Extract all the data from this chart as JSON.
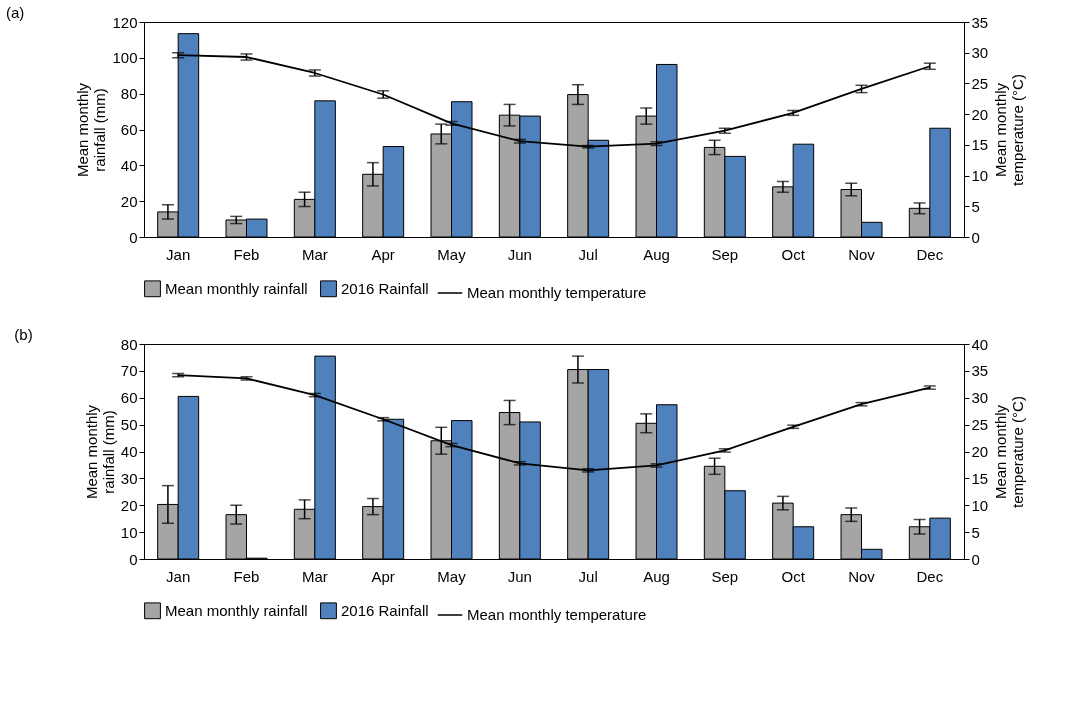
{
  "chart_data": [
    {
      "type": "bar",
      "title": "(a)",
      "categories": [
        "Jan",
        "Feb",
        "Mar",
        "Apr",
        "May",
        "Jun",
        "Jul",
        "Aug",
        "Sep",
        "Oct",
        "Nov",
        "Dec"
      ],
      "ylabel": "Mean monthly rainfall (mm)",
      "y2label": "Mean monthly temperature (°C)",
      "ylim": [
        0,
        120
      ],
      "yticks": [
        0,
        20,
        40,
        60,
        80,
        100,
        120
      ],
      "y2lim": [
        0,
        35
      ],
      "y2ticks": [
        0,
        5,
        10,
        15,
        20,
        25,
        30,
        35
      ],
      "legend": "bottom",
      "grid": false,
      "marker": "none",
      "line_style": "solid",
      "series": [
        {
          "name": "Mean monthly rainfall",
          "color": "#a5a5a5",
          "values": [
            14,
            9.5,
            21,
            35,
            57.5,
            68,
            79.5,
            67.5,
            50,
            28,
            26.5,
            16
          ],
          "errors": [
            4,
            2,
            4,
            6.5,
            5.5,
            6,
            5.5,
            4.5,
            4,
            3,
            3.5,
            3
          ]
        },
        {
          "name": "2016 Rainfall",
          "color": "#4f81bd",
          "values": [
            113.5,
            10,
            76,
            50.5,
            75.5,
            67.5,
            54,
            96.3,
            45,
            51.8,
            8.2,
            60.7
          ]
        },
        {
          "name": "Mean monthly temperature",
          "type": "line",
          "axis": "y2",
          "color": "#000000",
          "values": [
            29.6,
            29.3,
            26.7,
            23.2,
            18.5,
            15.6,
            14.7,
            15.2,
            17.3,
            20.2,
            24.1,
            27.8
          ],
          "errors": [
            0.4,
            0.5,
            0.5,
            0.6,
            0.3,
            0.3,
            0.2,
            0.3,
            0.4,
            0.4,
            0.6,
            0.5
          ]
        }
      ]
    },
    {
      "type": "bar",
      "title": "(b)",
      "categories": [
        "Jan",
        "Feb",
        "Mar",
        "Apr",
        "May",
        "Jun",
        "Jul",
        "Aug",
        "Sep",
        "Oct",
        "Nov",
        "Dec"
      ],
      "ylabel": "Mean monthly rainfall (mm)",
      "y2label": "Mean monthly temperature (°C)",
      "ylim": [
        0,
        80
      ],
      "yticks": [
        0,
        10,
        20,
        30,
        40,
        50,
        60,
        70,
        80
      ],
      "y2lim": [
        0,
        40
      ],
      "y2ticks": [
        0,
        5,
        10,
        15,
        20,
        25,
        30,
        35,
        40
      ],
      "legend": "bottom",
      "grid": false,
      "marker": "none",
      "line_style": "solid",
      "series": [
        {
          "name": "Mean monthly rainfall",
          "color": "#a5a5a5",
          "values": [
            20.3,
            16.5,
            18.5,
            19.5,
            44,
            54.5,
            70.5,
            50.5,
            34.5,
            20.8,
            16.5,
            12
          ],
          "errors": [
            7,
            3.5,
            3.5,
            3,
            5,
            4.5,
            5,
            3.5,
            3,
            2.5,
            2.5,
            2.7
          ]
        },
        {
          "name": "2016 Rainfall",
          "color": "#4f81bd",
          "values": [
            60.5,
            0.3,
            75.5,
            52,
            51.5,
            51,
            70.5,
            57.4,
            25.4,
            12,
            3.6,
            15.2
          ]
        },
        {
          "name": "Mean monthly temperature",
          "type": "line",
          "axis": "y2",
          "color": "#000000",
          "values": [
            34.2,
            33.6,
            30.5,
            26,
            21.2,
            17.8,
            16.5,
            17.4,
            20.2,
            24.6,
            28.8,
            31.9
          ],
          "errors": [
            0.3,
            0.3,
            0.3,
            0.3,
            0.3,
            0.3,
            0.3,
            0.3,
            0.3,
            0.3,
            0.3,
            0.3
          ]
        }
      ]
    }
  ]
}
